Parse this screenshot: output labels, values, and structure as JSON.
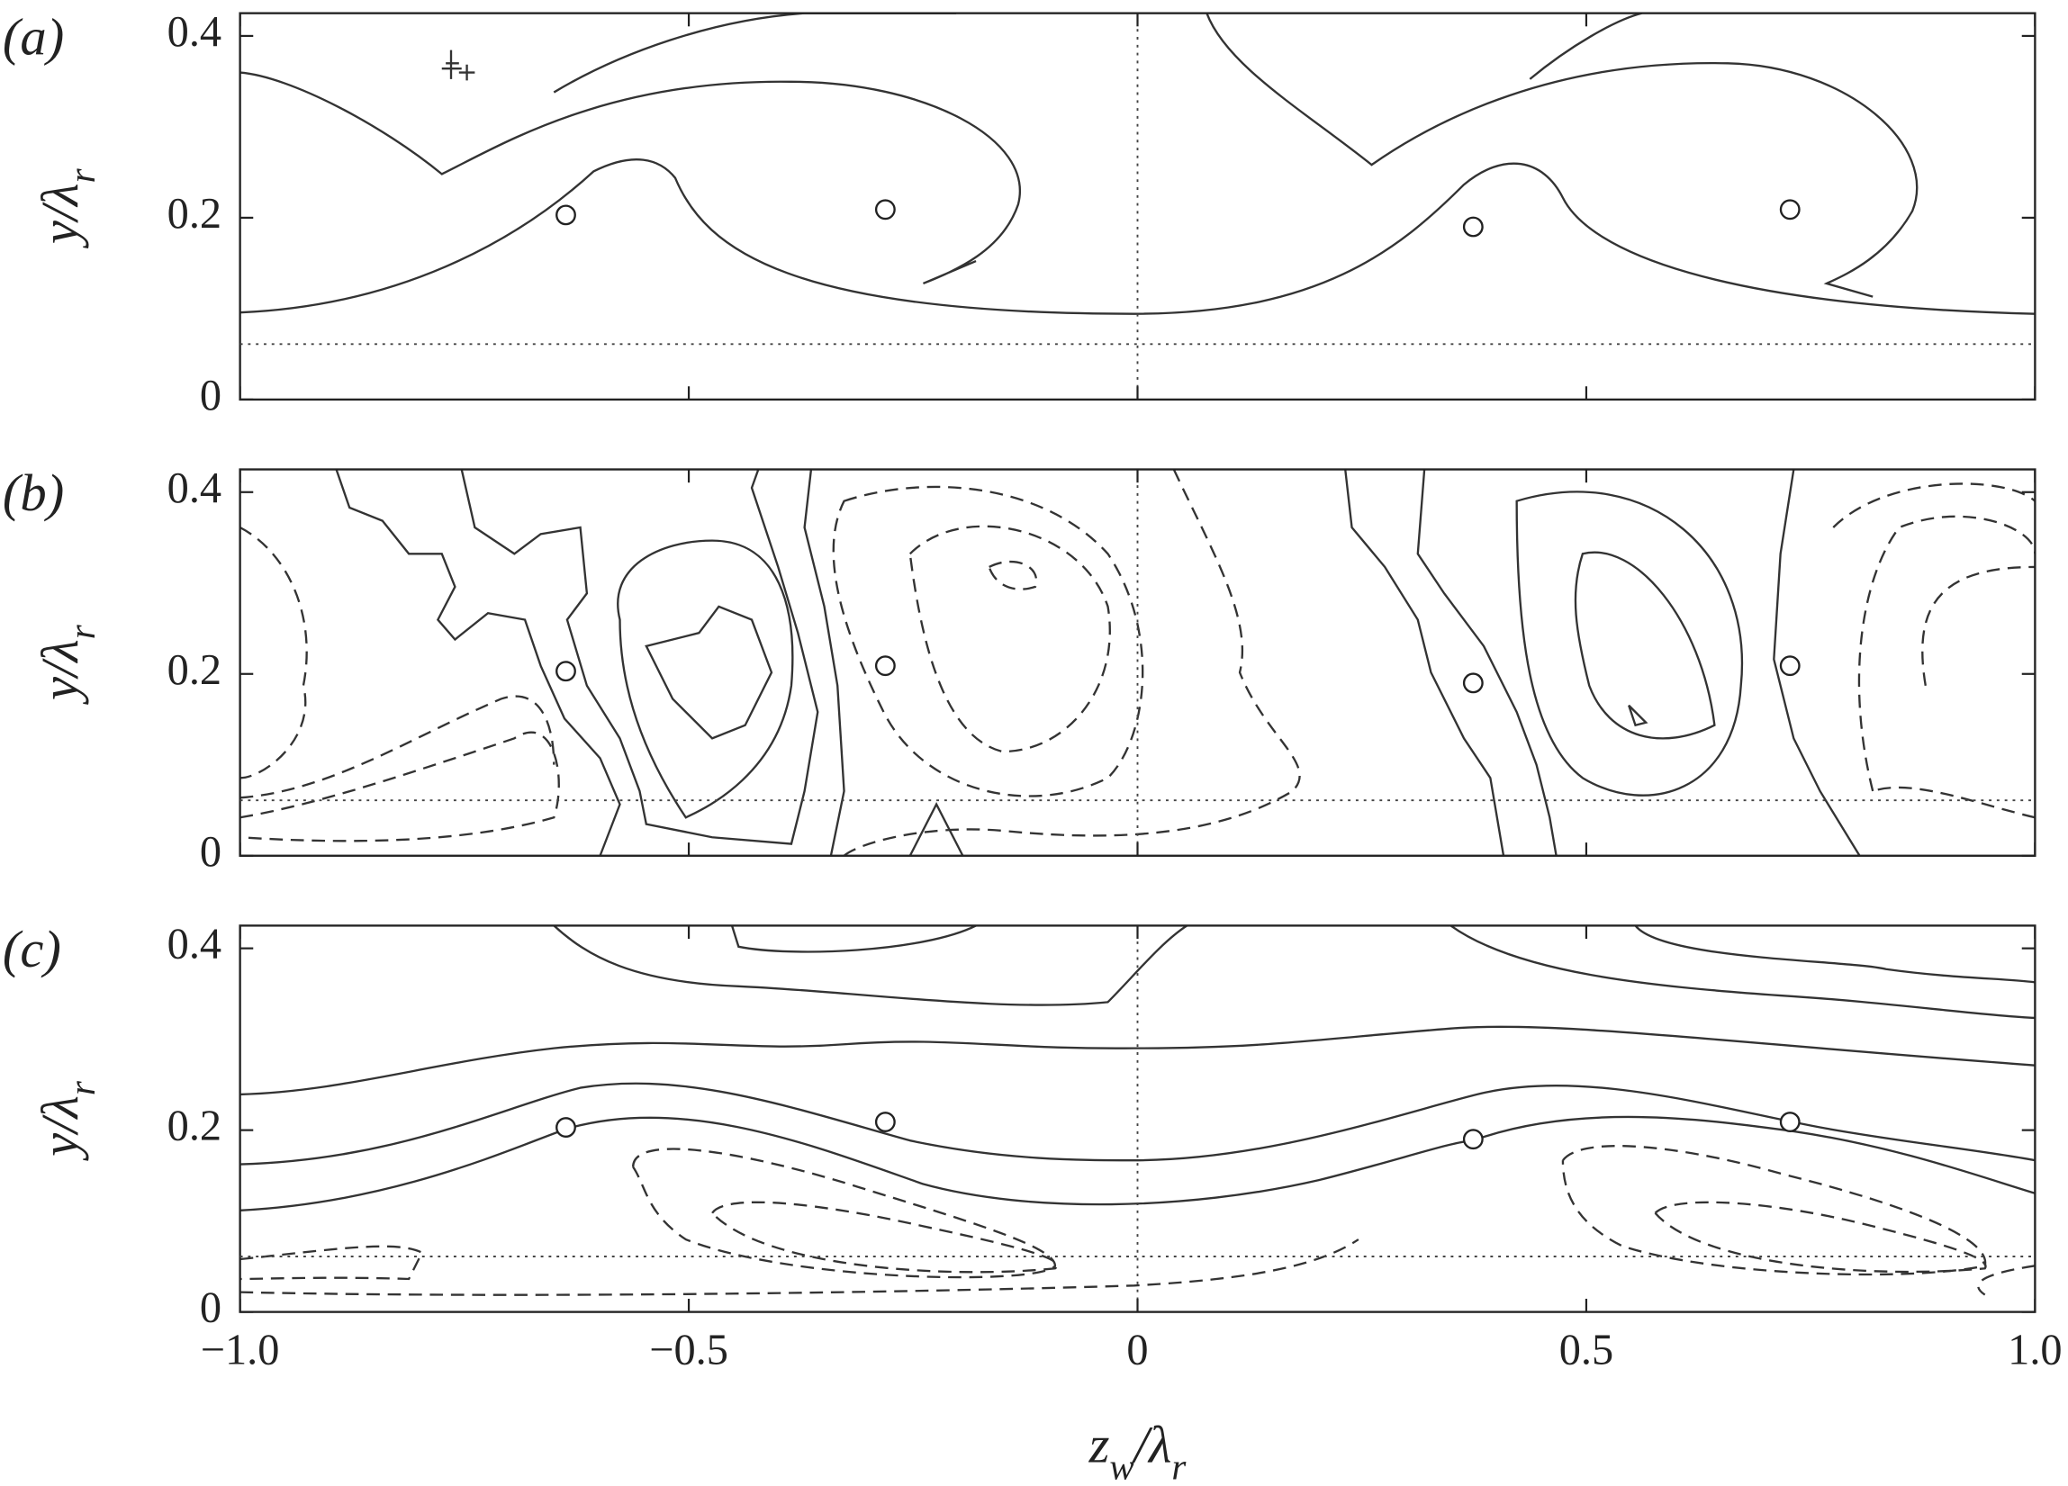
{
  "chart_data": [
    {
      "type": "contour",
      "label": "(a)",
      "ylabel": [
        {
          "text": "y/λ"
        },
        {
          "text": "r",
          "sub": true
        }
      ],
      "xlim": [
        -1,
        1
      ],
      "ylim": [
        0,
        0.425
      ],
      "yticks": [
        0,
        0.2,
        0.4
      ],
      "hline": 0.061,
      "vline": 0,
      "points": {
        "x": [
          -0.637,
          -0.281,
          0.374,
          0.727
        ],
        "y": [
          0.203,
          0.209,
          0.19,
          0.209
        ]
      }
    },
    {
      "type": "contour",
      "label": "(b)",
      "ylabel": [
        {
          "text": "y/λ"
        },
        {
          "text": "r",
          "sub": true
        }
      ],
      "xlim": [
        -1,
        1
      ],
      "ylim": [
        0,
        0.425
      ],
      "yticks": [
        0,
        0.2,
        0.4
      ],
      "hline": 0.061,
      "vline": 0,
      "points": {
        "x": [
          -0.637,
          -0.281,
          0.374,
          0.727
        ],
        "y": [
          0.203,
          0.209,
          0.19,
          0.209
        ]
      }
    },
    {
      "type": "contour",
      "label": "(c)",
      "ylabel": [
        {
          "text": "y/λ"
        },
        {
          "text": "r",
          "sub": true
        }
      ],
      "xlabel": [
        {
          "text": "z"
        },
        {
          "text": "w",
          "sub": true
        },
        {
          "text": "/λ"
        },
        {
          "text": "r",
          "sub": true
        }
      ],
      "xlim": [
        -1,
        1
      ],
      "ylim": [
        0,
        0.425
      ],
      "yticks": [
        0,
        0.2,
        0.4
      ],
      "xticks": [
        {
          "value": -1,
          "label": "−1.0"
        },
        {
          "value": -0.5,
          "label": "−0.5"
        },
        0,
        0.5,
        {
          "value": 1,
          "label": "1.0"
        }
      ],
      "hline": 0.061,
      "vline": 0,
      "points": {
        "x": [
          -0.637,
          -0.281,
          0.374,
          0.727
        ],
        "y": [
          0.203,
          0.209,
          0.19,
          0.209
        ]
      }
    }
  ]
}
